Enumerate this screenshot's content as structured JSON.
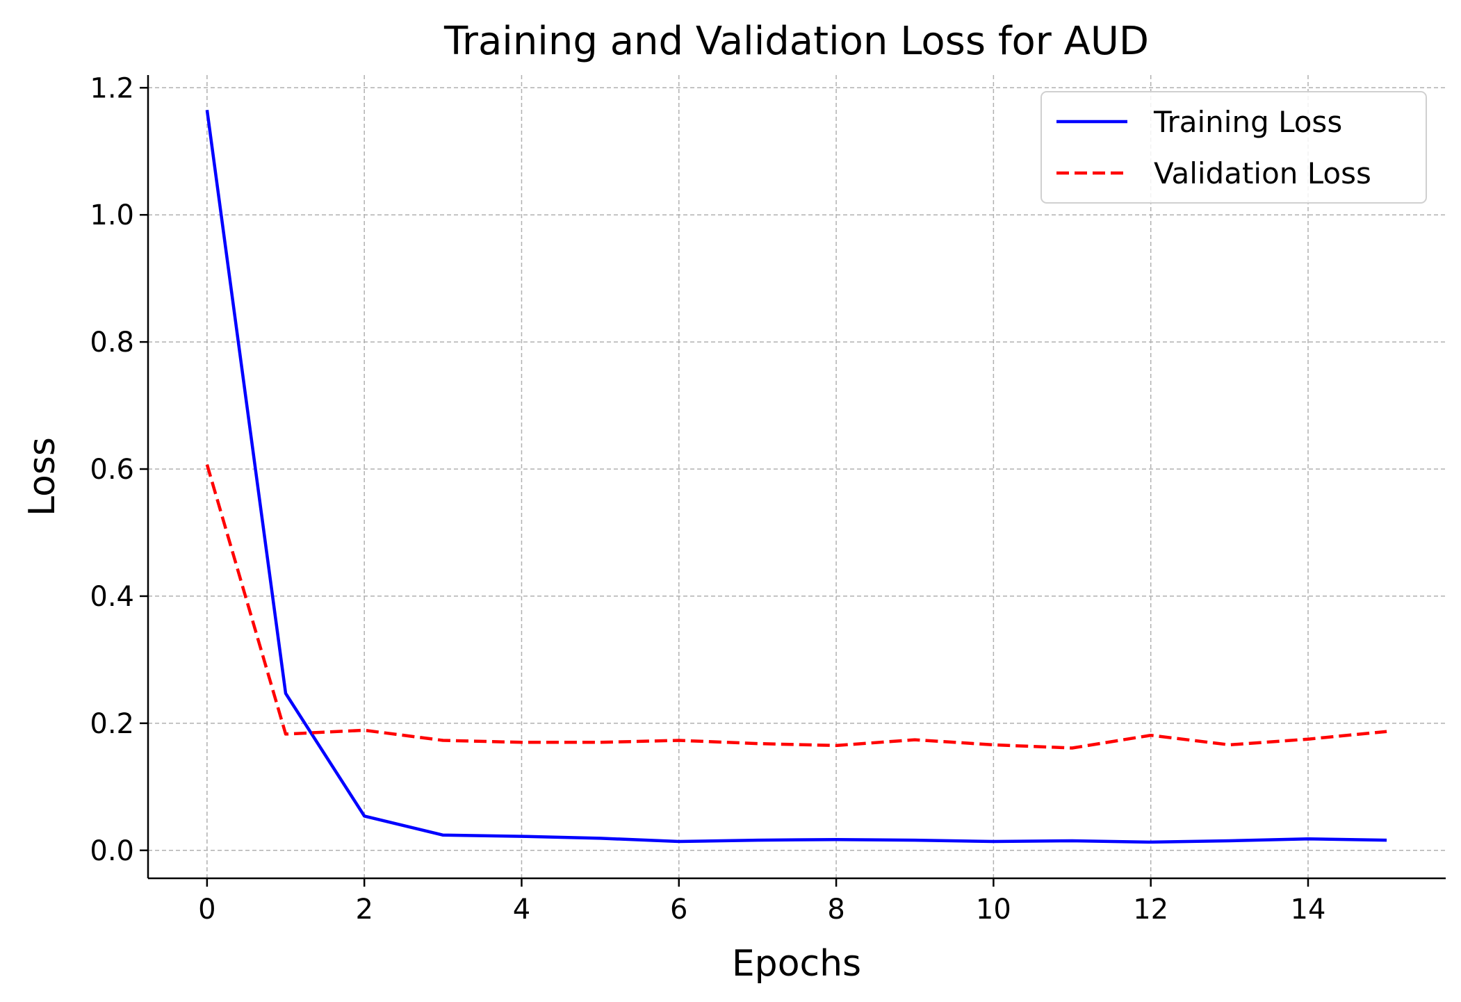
{
  "chart_data": {
    "type": "line",
    "title": "Training and Validation Loss for AUD",
    "xlabel": "Epochs",
    "ylabel": "Loss",
    "x": [
      0,
      1,
      2,
      3,
      4,
      5,
      6,
      7,
      8,
      9,
      10,
      11,
      12,
      13,
      14,
      15
    ],
    "xlim": [
      -0.75,
      15.75
    ],
    "ylim": [
      -0.044,
      1.22
    ],
    "xticks": [
      0,
      2,
      4,
      6,
      8,
      10,
      12,
      14
    ],
    "yticks": [
      0.0,
      0.2,
      0.4,
      0.6,
      0.8,
      1.0,
      1.2
    ],
    "grid": true,
    "legend_position": "top-right",
    "series": [
      {
        "name": "Training Loss",
        "color": "#0000ff",
        "line_style": "solid",
        "values": [
          1.165,
          0.247,
          0.054,
          0.024,
          0.022,
          0.019,
          0.014,
          0.016,
          0.017,
          0.016,
          0.014,
          0.015,
          0.013,
          0.015,
          0.018,
          0.016
        ]
      },
      {
        "name": "Validation Loss",
        "color": "#ff0000",
        "line_style": "dashed",
        "values": [
          0.607,
          0.183,
          0.189,
          0.173,
          0.17,
          0.17,
          0.173,
          0.168,
          0.165,
          0.174,
          0.166,
          0.161,
          0.181,
          0.166,
          0.175,
          0.187
        ]
      }
    ]
  }
}
